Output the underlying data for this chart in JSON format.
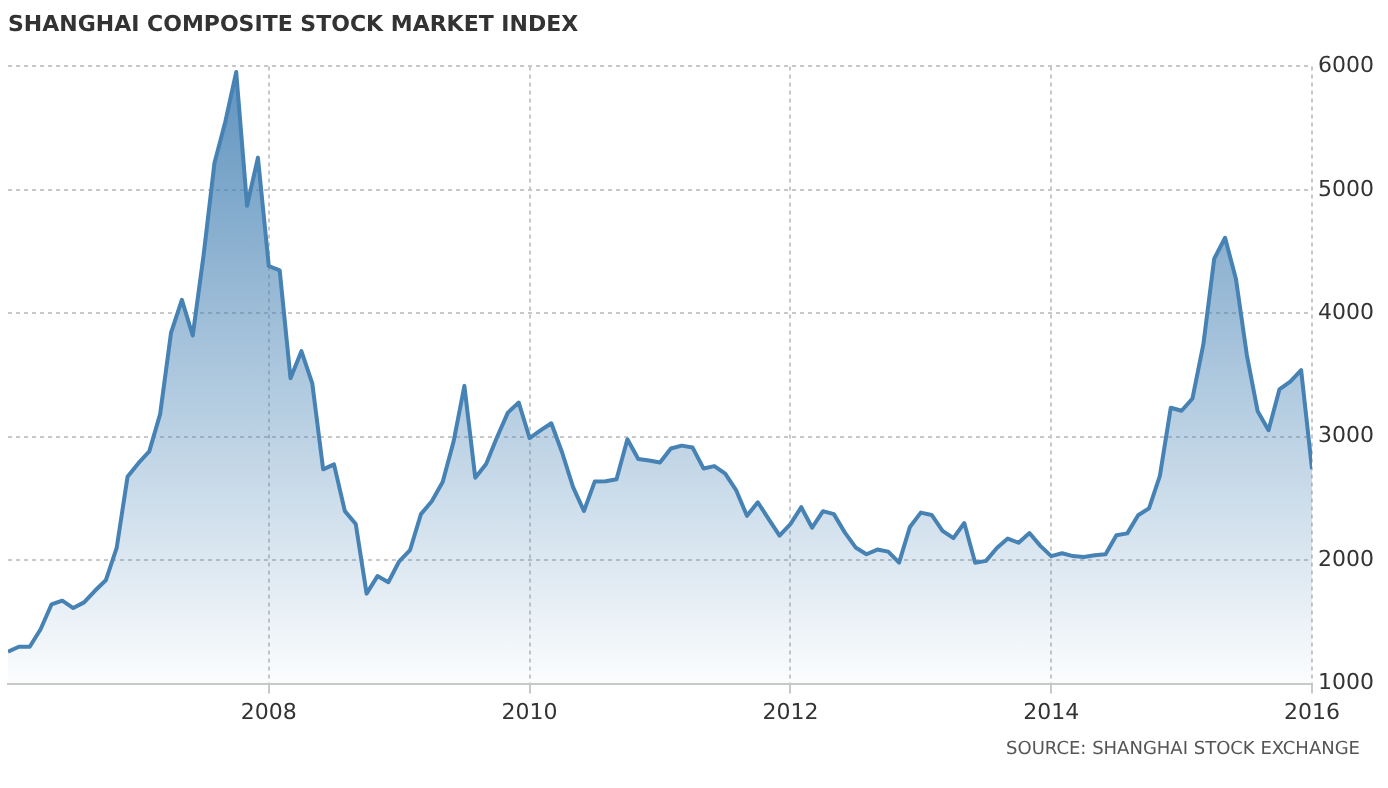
{
  "chart_data": {
    "type": "area",
    "title": "SHANGHAI COMPOSITE STOCK MARKET INDEX",
    "annotations": [
      "SOURCE: SHANGHAI STOCK EXCHANGE"
    ],
    "x": [
      "2006-01",
      "2006-02",
      "2006-03",
      "2006-04",
      "2006-05",
      "2006-06",
      "2006-07",
      "2006-08",
      "2006-09",
      "2006-10",
      "2006-11",
      "2006-12",
      "2007-01",
      "2007-02",
      "2007-03",
      "2007-04",
      "2007-05",
      "2007-06",
      "2007-07",
      "2007-08",
      "2007-09",
      "2007-10",
      "2007-11",
      "2007-12",
      "2008-01",
      "2008-02",
      "2008-03",
      "2008-04",
      "2008-05",
      "2008-06",
      "2008-07",
      "2008-08",
      "2008-09",
      "2008-10",
      "2008-11",
      "2008-12",
      "2009-01",
      "2009-02",
      "2009-03",
      "2009-04",
      "2009-05",
      "2009-06",
      "2009-07",
      "2009-08",
      "2009-09",
      "2009-10",
      "2009-11",
      "2009-12",
      "2010-01",
      "2010-02",
      "2010-03",
      "2010-04",
      "2010-05",
      "2010-06",
      "2010-07",
      "2010-08",
      "2010-09",
      "2010-10",
      "2010-11",
      "2010-12",
      "2011-01",
      "2011-02",
      "2011-03",
      "2011-04",
      "2011-05",
      "2011-06",
      "2011-07",
      "2011-08",
      "2011-09",
      "2011-10",
      "2011-11",
      "2011-12",
      "2012-01",
      "2012-02",
      "2012-03",
      "2012-04",
      "2012-05",
      "2012-06",
      "2012-07",
      "2012-08",
      "2012-09",
      "2012-10",
      "2012-11",
      "2012-12",
      "2013-01",
      "2013-02",
      "2013-03",
      "2013-04",
      "2013-05",
      "2013-06",
      "2013-07",
      "2013-08",
      "2013-09",
      "2013-10",
      "2013-11",
      "2013-12",
      "2014-01",
      "2014-02",
      "2014-03",
      "2014-04",
      "2014-05",
      "2014-06",
      "2014-07",
      "2014-08",
      "2014-09",
      "2014-10",
      "2014-11",
      "2014-12",
      "2015-01",
      "2015-02",
      "2015-03",
      "2015-04",
      "2015-05",
      "2015-06",
      "2015-07",
      "2015-08",
      "2015-09",
      "2015-10",
      "2015-11",
      "2015-12",
      "2016-01"
    ],
    "series": [
      {
        "color": "#4682b4",
        "values": [
          1258,
          1299,
          1298,
          1440,
          1641,
          1672,
          1612,
          1658,
          1752,
          1837,
          2099,
          2675,
          2786,
          2881,
          3183,
          3841,
          4109,
          3820,
          4471,
          5218,
          5552,
          5954,
          4871,
          5261,
          4383,
          4348,
          3473,
          3693,
          3433,
          2736,
          2776,
          2397,
          2293,
          1729,
          1871,
          1821,
          1991,
          2082,
          2373,
          2477,
          2633,
          2959,
          3412,
          2667,
          2779,
          2996,
          3195,
          3277,
          2989,
          3051,
          3109,
          2870,
          2592,
          2398,
          2638,
          2639,
          2656,
          2979,
          2820,
          2808,
          2791,
          2905,
          2928,
          2912,
          2743,
          2762,
          2701,
          2568,
          2359,
          2469,
          2333,
          2199,
          2292,
          2429,
          2263,
          2397,
          2373,
          2225,
          2103,
          2048,
          2086,
          2069,
          1980,
          2269,
          2385,
          2366,
          2237,
          2178,
          2301,
          1979,
          1994,
          2098,
          2175,
          2141,
          2220,
          2116,
          2033,
          2056,
          2033,
          2026,
          2039,
          2048,
          2202,
          2217,
          2364,
          2420,
          2683,
          3235,
          3210,
          3310,
          3748,
          4442,
          4612,
          4277,
          3664,
          3206,
          3053,
          3383,
          3446,
          3539,
          2738
        ]
      }
    ],
    "xlim": [
      "2006-01",
      "2016-01"
    ],
    "xticks": [
      "2008",
      "2010",
      "2012",
      "2014",
      "2016"
    ],
    "ylim": [
      1000,
      6000
    ],
    "yticks": [
      1000,
      2000,
      3000,
      4000,
      5000,
      6000
    ],
    "grid": true,
    "legend": false,
    "marker": "none"
  }
}
